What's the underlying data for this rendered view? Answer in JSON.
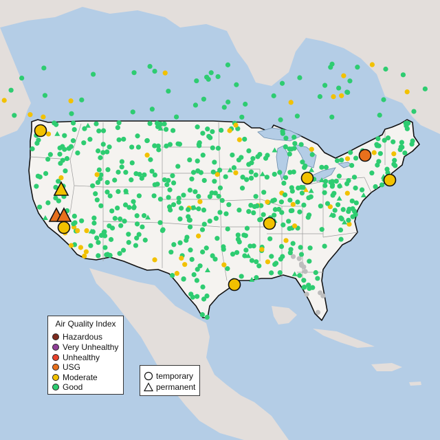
{
  "map": {
    "region": "Contiguous United States",
    "basemap_colors": {
      "water": "#b4cde6",
      "land_us": "#f5f3f0",
      "land_other": "#e3dedb",
      "border": "#111111",
      "state_line": "#9a9a9a"
    },
    "category_colors": {
      "Hazardous": "#7e2a1e",
      "Very Unhealthy": "#8f3f97",
      "Unhealthy": "#e8412b",
      "USG": "#e8701c",
      "Moderate": "#f2c100",
      "Good": "#2ecc71",
      "No data": "#bdbdbd"
    },
    "large_stations": [
      {
        "shape": "circle",
        "category": "Moderate"
      },
      {
        "shape": "triangle",
        "category": "Moderate"
      },
      {
        "shape": "triangle",
        "category": "USG"
      },
      {
        "shape": "triangle",
        "category": "USG"
      },
      {
        "shape": "circle",
        "category": "Moderate"
      },
      {
        "shape": "circle",
        "category": "Moderate"
      },
      {
        "shape": "circle",
        "category": "Moderate"
      },
      {
        "shape": "circle",
        "category": "USG"
      },
      {
        "shape": "circle",
        "category": "Moderate"
      },
      {
        "shape": "circle",
        "category": "Moderate"
      }
    ]
  },
  "legend": {
    "title": "Air Quality Index",
    "items": [
      {
        "label": "Hazardous",
        "color": "#7e2a1e"
      },
      {
        "label": "Very Unhealthy",
        "color": "#8f3f97"
      },
      {
        "label": "Unhealthy",
        "color": "#e8412b"
      },
      {
        "label": "USG",
        "color": "#e8701c"
      },
      {
        "label": "Moderate",
        "color": "#f2c100"
      },
      {
        "label": "Good",
        "color": "#2ecc71"
      }
    ]
  },
  "monitor_types": {
    "items": [
      {
        "label": "temporary",
        "icon": "circle-outline-icon"
      },
      {
        "label": "permanent",
        "icon": "triangle-outline-icon"
      }
    ]
  }
}
